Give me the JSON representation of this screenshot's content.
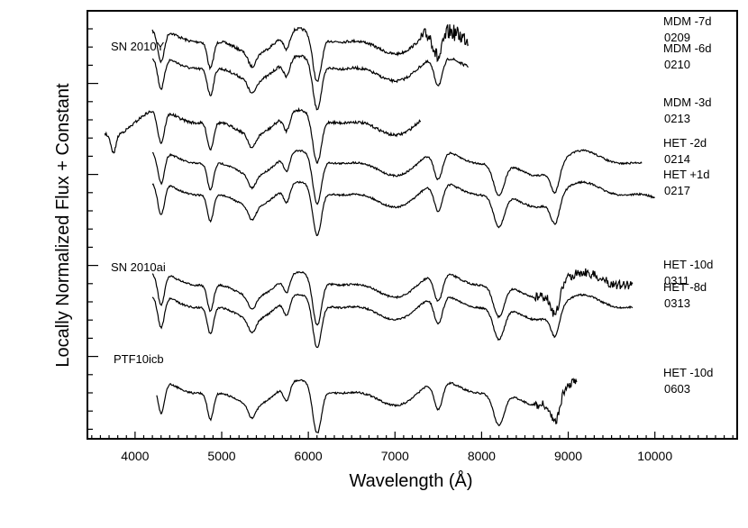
{
  "chart_data": {
    "type": "line",
    "title": "",
    "xlabel": "Wavelength (Å)",
    "ylabel": "Locally Normalized Flux + Constant",
    "xlim": [
      3450,
      10950
    ],
    "x_ticks": [
      4000,
      5000,
      6000,
      7000,
      8000,
      9000,
      10000
    ],
    "grid": false,
    "object_labels": [
      "SN 2010Y",
      "SN 2010ai",
      "PTF10icb"
    ],
    "absorption_features": [
      3750,
      4300,
      4870,
      5350,
      5750,
      6100,
      7500,
      8200,
      8850
    ],
    "series": [
      {
        "name": "MDM -7d",
        "date": "0209",
        "object": "SN 2010Y",
        "x_range": [
          4200,
          7850
        ],
        "offset": 8.4
      },
      {
        "name": "MDM -6d",
        "date": "0210",
        "object": "SN 2010Y",
        "x_range": [
          4200,
          7850
        ],
        "offset": 7.8
      },
      {
        "name": "MDM -3d",
        "date": "0213",
        "object": "SN 2010Y",
        "x_range": [
          3650,
          7300
        ],
        "offset": 6.6
      },
      {
        "name": "HET -2d",
        "date": "0214",
        "object": "SN 2010Y",
        "x_range": [
          4200,
          9850
        ],
        "offset": 5.7
      },
      {
        "name": "HET +1d",
        "date": "0217",
        "object": "SN 2010Y",
        "x_range": [
          4200,
          10000
        ],
        "offset": 5.0
      },
      {
        "name": "HET -10d",
        "date": "0311",
        "object": "SN 2010ai",
        "x_range": [
          4200,
          9750
        ],
        "offset": 3.0
      },
      {
        "name": "HET -8d",
        "date": "0313",
        "object": "SN 2010ai",
        "x_range": [
          4200,
          9750
        ],
        "offset": 2.5
      },
      {
        "name": "HET -10d",
        "date": "0603",
        "object": "PTF10icb",
        "x_range": [
          4250,
          9100
        ],
        "offset": 0.6
      }
    ]
  }
}
